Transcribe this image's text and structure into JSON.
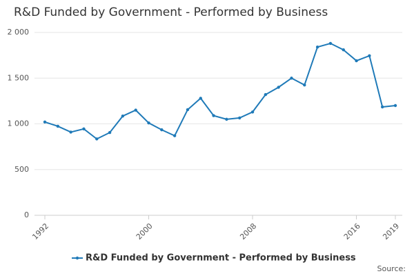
{
  "chart_data": {
    "type": "line",
    "title": "R&D Funded by Government - Performed by Business",
    "source": "Source:",
    "x": [
      1992,
      1993,
      1994,
      1995,
      1996,
      1997,
      1998,
      1999,
      2000,
      2001,
      2002,
      2003,
      2004,
      2005,
      2006,
      2007,
      2008,
      2009,
      2010,
      2011,
      2012,
      2013,
      2014,
      2015,
      2016,
      2017,
      2018,
      2019
    ],
    "series": [
      {
        "name": "R&D Funded by Government - Performed by Business",
        "color": "#1f7ab8",
        "values": [
          1020,
          974,
          910,
          945,
          835,
          905,
          1085,
          1150,
          1010,
          935,
          870,
          1155,
          1280,
          1090,
          1050,
          1065,
          1130,
          1320,
          1400,
          1500,
          1425,
          1840,
          1880,
          1810,
          1690,
          1745,
          1185,
          1200
        ]
      }
    ],
    "xlim": [
      1992,
      2019
    ],
    "xticks": [
      1992,
      2000,
      2008,
      2016,
      2019
    ],
    "ylim": [
      0,
      2000
    ],
    "yticks": [
      0,
      500,
      {
        "value": 1000,
        "label": "1 000"
      },
      {
        "value": 1500,
        "label": "1 500"
      },
      {
        "value": 2000,
        "label": "2 000"
      }
    ],
    "grid": true,
    "legend": "bottom"
  }
}
